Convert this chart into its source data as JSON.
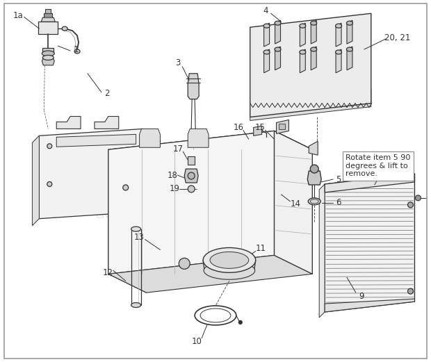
{
  "background_color": "#ffffff",
  "border_color": "#999999",
  "watermark_text": "eReplacementParts.com",
  "watermark_color": "#bbbbbb",
  "watermark_fontsize": 11,
  "fig_width": 6.2,
  "fig_height": 5.21,
  "dpi": 100,
  "parts_note": "Rotate item 5 90\ndegrees & lift to\nremove.",
  "parts_note_fontsize": 8.0,
  "line_color": "#333333",
  "line_width": 0.9,
  "label_fontsize": 8.0
}
